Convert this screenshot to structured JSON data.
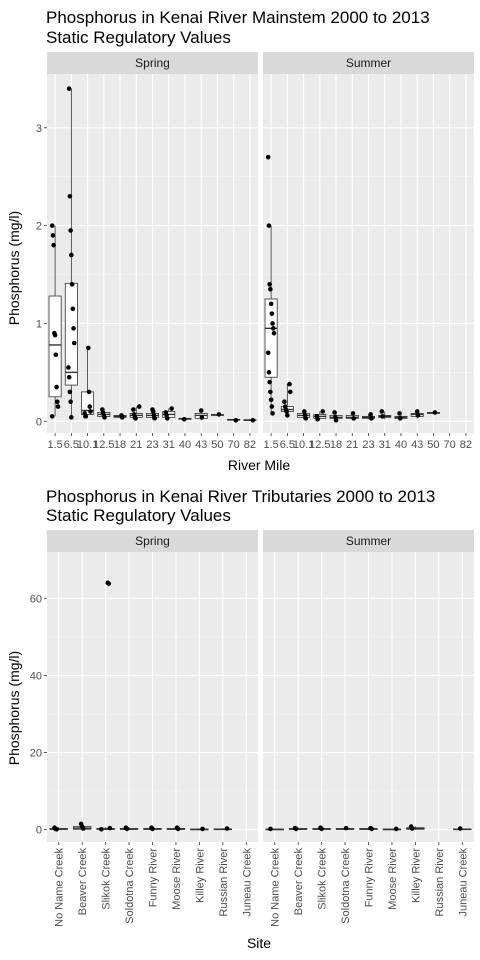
{
  "chart_data": [
    {
      "type": "boxplot",
      "title_line1": "Phosphorus in Kenai River Mainstem  2000 to 2013",
      "title_line2": "Static Regulatory Values",
      "xlabel": "River Mile",
      "ylabel": "Phosphorus (mg/l)",
      "ylim": [
        -0.12,
        3.55
      ],
      "y_ticks": [
        0,
        1,
        2,
        3
      ],
      "y_tick_labels": [
        "0",
        "1",
        "2",
        "3"
      ],
      "categories": [
        "1.5",
        "6.5",
        "10.1",
        "12.5",
        "18",
        "21",
        "23",
        "31",
        "40",
        "43",
        "50",
        "70",
        "82"
      ],
      "facets": [
        {
          "label": "Spring",
          "boxes": [
            {
              "cat": 0,
              "q1": 0.25,
              "med": 0.78,
              "q3": 1.28,
              "lo": 0.05,
              "hi": 2.0
            },
            {
              "cat": 1,
              "q1": 0.37,
              "med": 0.5,
              "q3": 1.41,
              "lo": 0.04,
              "hi": 3.4
            },
            {
              "cat": 2,
              "q1": 0.07,
              "med": 0.11,
              "q3": 0.3,
              "lo": 0.03,
              "hi": 0.75
            },
            {
              "cat": 3,
              "q1": 0.05,
              "med": 0.07,
              "q3": 0.09,
              "lo": 0.03,
              "hi": 0.12
            },
            {
              "cat": 4,
              "q1": 0.04,
              "med": 0.05,
              "q3": 0.06,
              "lo": 0.03,
              "hi": 0.07
            },
            {
              "cat": 5,
              "q1": 0.04,
              "med": 0.06,
              "q3": 0.08,
              "lo": 0.02,
              "hi": 0.15
            },
            {
              "cat": 6,
              "q1": 0.04,
              "med": 0.06,
              "q3": 0.08,
              "lo": 0.02,
              "hi": 0.12
            },
            {
              "cat": 7,
              "q1": 0.04,
              "med": 0.07,
              "q3": 0.1,
              "lo": 0.02,
              "hi": 0.13
            },
            {
              "cat": 8,
              "q1": 0.02,
              "med": 0.025,
              "q3": 0.03,
              "lo": 0.02,
              "hi": 0.03
            },
            {
              "cat": 9,
              "q1": 0.03,
              "med": 0.06,
              "q3": 0.08,
              "lo": 0.01,
              "hi": 0.11
            },
            {
              "cat": 10,
              "q1": 0.06,
              "med": 0.065,
              "q3": 0.07,
              "lo": 0.06,
              "hi": 0.07
            },
            {
              "cat": 11,
              "q1": 0.01,
              "med": 0.015,
              "q3": 0.02,
              "lo": 0.01,
              "hi": 0.02
            },
            {
              "cat": 12,
              "q1": 0.01,
              "med": 0.012,
              "q3": 0.015,
              "lo": 0.01,
              "hi": 0.015
            }
          ],
          "points": [
            [
              0,
              2.0
            ],
            [
              0,
              1.9
            ],
            [
              0,
              1.8
            ],
            [
              0,
              0.9
            ],
            [
              0,
              0.88
            ],
            [
              0,
              0.68
            ],
            [
              0,
              0.35
            ],
            [
              0,
              0.2
            ],
            [
              0,
              0.15
            ],
            [
              0,
              0.05
            ],
            [
              1,
              3.4
            ],
            [
              1,
              2.3
            ],
            [
              1,
              1.95
            ],
            [
              1,
              1.7
            ],
            [
              1,
              1.4
            ],
            [
              1,
              1.15
            ],
            [
              1,
              0.95
            ],
            [
              1,
              0.8
            ],
            [
              1,
              0.55
            ],
            [
              1,
              0.45
            ],
            [
              1,
              0.3
            ],
            [
              1,
              0.2
            ],
            [
              1,
              0.04
            ],
            [
              2,
              0.75
            ],
            [
              2,
              0.3
            ],
            [
              2,
              0.15
            ],
            [
              2,
              0.1
            ],
            [
              2,
              0.08
            ],
            [
              2,
              0.05
            ],
            [
              3,
              0.12
            ],
            [
              3,
              0.09
            ],
            [
              3,
              0.06
            ],
            [
              3,
              0.04
            ],
            [
              4,
              0.06
            ],
            [
              4,
              0.04
            ],
            [
              5,
              0.15
            ],
            [
              5,
              0.12
            ],
            [
              5,
              0.07
            ],
            [
              5,
              0.04
            ],
            [
              5,
              0.03
            ],
            [
              6,
              0.12
            ],
            [
              6,
              0.1
            ],
            [
              6,
              0.06
            ],
            [
              6,
              0.03
            ],
            [
              7,
              0.13
            ],
            [
              7,
              0.09
            ],
            [
              7,
              0.06
            ],
            [
              7,
              0.03
            ],
            [
              8,
              0.02
            ],
            [
              9,
              0.11
            ],
            [
              9,
              0.04
            ],
            [
              10,
              0.07
            ],
            [
              11,
              0.01
            ],
            [
              12,
              0.01
            ]
          ]
        },
        {
          "label": "Summer",
          "boxes": [
            {
              "cat": 0,
              "q1": 0.45,
              "med": 0.95,
              "q3": 1.25,
              "lo": 0.08,
              "hi": 2.0
            },
            {
              "cat": 1,
              "q1": 0.1,
              "med": 0.12,
              "q3": 0.15,
              "lo": 0.06,
              "hi": 0.38
            },
            {
              "cat": 2,
              "q1": 0.04,
              "med": 0.06,
              "q3": 0.08,
              "lo": 0.02,
              "hi": 0.1
            },
            {
              "cat": 3,
              "q1": 0.03,
              "med": 0.05,
              "q3": 0.07,
              "lo": 0.02,
              "hi": 0.1
            },
            {
              "cat": 4,
              "q1": 0.03,
              "med": 0.04,
              "q3": 0.06,
              "lo": 0.01,
              "hi": 0.09
            },
            {
              "cat": 5,
              "q1": 0.03,
              "med": 0.04,
              "q3": 0.06,
              "lo": 0.01,
              "hi": 0.08
            },
            {
              "cat": 6,
              "q1": 0.03,
              "med": 0.04,
              "q3": 0.05,
              "lo": 0.02,
              "hi": 0.07
            },
            {
              "cat": 7,
              "q1": 0.04,
              "med": 0.05,
              "q3": 0.06,
              "lo": 0.02,
              "hi": 0.1
            },
            {
              "cat": 8,
              "q1": 0.03,
              "med": 0.04,
              "q3": 0.05,
              "lo": 0.02,
              "hi": 0.08
            },
            {
              "cat": 9,
              "q1": 0.05,
              "med": 0.07,
              "q3": 0.08,
              "lo": 0.03,
              "hi": 0.1
            },
            {
              "cat": 10,
              "q1": 0.08,
              "med": 0.085,
              "q3": 0.09,
              "lo": 0.08,
              "hi": 0.09
            }
          ],
          "points": [
            [
              0,
              2.7
            ],
            [
              0,
              2.0
            ],
            [
              0,
              1.4
            ],
            [
              0,
              1.35
            ],
            [
              0,
              1.2
            ],
            [
              0,
              1.1
            ],
            [
              0,
              1.0
            ],
            [
              0,
              0.95
            ],
            [
              0,
              0.9
            ],
            [
              0,
              0.7
            ],
            [
              0,
              0.5
            ],
            [
              0,
              0.4
            ],
            [
              0,
              0.3
            ],
            [
              0,
              0.22
            ],
            [
              0,
              0.15
            ],
            [
              0,
              0.08
            ],
            [
              1,
              0.38
            ],
            [
              1,
              0.3
            ],
            [
              1,
              0.2
            ],
            [
              1,
              0.15
            ],
            [
              1,
              0.12
            ],
            [
              1,
              0.1
            ],
            [
              1,
              0.06
            ],
            [
              2,
              0.1
            ],
            [
              2,
              0.06
            ],
            [
              2,
              0.03
            ],
            [
              3,
              0.1
            ],
            [
              3,
              0.05
            ],
            [
              3,
              0.02
            ],
            [
              4,
              0.09
            ],
            [
              4,
              0.04
            ],
            [
              4,
              0.01
            ],
            [
              5,
              0.08
            ],
            [
              5,
              0.03
            ],
            [
              6,
              0.07
            ],
            [
              6,
              0.03
            ],
            [
              7,
              0.1
            ],
            [
              7,
              0.05
            ],
            [
              8,
              0.08
            ],
            [
              8,
              0.03
            ],
            [
              9,
              0.1
            ],
            [
              9,
              0.06
            ],
            [
              10,
              0.09
            ]
          ]
        }
      ]
    },
    {
      "type": "boxplot",
      "title_line1": "Phosphorus in Kenai River Tributaries  2000 to 2013",
      "title_line2": "Static Regulatory Values",
      "xlabel": "Site",
      "ylabel": "Phosphorus (mg/l)",
      "ylim": [
        -3.2,
        72
      ],
      "y_ticks": [
        0,
        20,
        40,
        60
      ],
      "y_tick_labels": [
        "0",
        "20",
        "40",
        "60"
      ],
      "categories": [
        "No Name Creek",
        "Beaver Creek",
        "Slikok Creek",
        "Soldotna Creek",
        "Funny River",
        "Moose River",
        "Killey River",
        "Russian River",
        "Juneau Creek"
      ],
      "facets": [
        {
          "label": "Spring",
          "boxes": [
            {
              "cat": 0,
              "q1": 0.05,
              "med": 0.15,
              "q3": 0.3,
              "lo": 0.0,
              "hi": 0.6
            },
            {
              "cat": 1,
              "q1": 0.1,
              "med": 0.4,
              "q3": 0.8,
              "lo": 0.0,
              "hi": 1.6
            },
            {
              "cat": 2,
              "q1": 0.05,
              "med": 0.15,
              "q3": 0.3,
              "lo": 0.0,
              "hi": 0.6
            },
            {
              "cat": 3,
              "q1": 0.05,
              "med": 0.15,
              "q3": 0.3,
              "lo": 0.0,
              "hi": 0.6
            },
            {
              "cat": 4,
              "q1": 0.05,
              "med": 0.15,
              "q3": 0.3,
              "lo": 0.0,
              "hi": 0.6
            },
            {
              "cat": 5,
              "q1": 0.05,
              "med": 0.15,
              "q3": 0.3,
              "lo": 0.0,
              "hi": 0.6
            },
            {
              "cat": 6,
              "q1": 0.02,
              "med": 0.08,
              "q3": 0.15,
              "lo": 0.0,
              "hi": 0.3
            },
            {
              "cat": 7,
              "q1": 0.02,
              "med": 0.1,
              "q3": 0.2,
              "lo": 0.0,
              "hi": 0.4
            }
          ],
          "points": [
            [
              0,
              0.5
            ],
            [
              0,
              0.2
            ],
            [
              0,
              0.1
            ],
            [
              1,
              1.5
            ],
            [
              1,
              0.8
            ],
            [
              1,
              0.3
            ],
            [
              2,
              64.0
            ],
            [
              2,
              63.8
            ],
            [
              2,
              0.4
            ],
            [
              2,
              0.1
            ],
            [
              3,
              0.5
            ],
            [
              3,
              0.2
            ],
            [
              4,
              0.5
            ],
            [
              4,
              0.2
            ],
            [
              5,
              0.5
            ],
            [
              5,
              0.2
            ],
            [
              6,
              0.2
            ],
            [
              7,
              0.3
            ]
          ]
        },
        {
          "label": "Summer",
          "boxes": [
            {
              "cat": 0,
              "q1": 0.02,
              "med": 0.08,
              "q3": 0.15,
              "lo": 0.0,
              "hi": 0.3
            },
            {
              "cat": 1,
              "q1": 0.05,
              "med": 0.15,
              "q3": 0.3,
              "lo": 0.0,
              "hi": 0.5
            },
            {
              "cat": 2,
              "q1": 0.05,
              "med": 0.15,
              "q3": 0.3,
              "lo": 0.0,
              "hi": 0.6
            },
            {
              "cat": 3,
              "q1": 0.05,
              "med": 0.15,
              "q3": 0.3,
              "lo": 0.0,
              "hi": 0.5
            },
            {
              "cat": 4,
              "q1": 0.05,
              "med": 0.15,
              "q3": 0.3,
              "lo": 0.0,
              "hi": 0.5
            },
            {
              "cat": 5,
              "q1": 0.02,
              "med": 0.08,
              "q3": 0.15,
              "lo": 0.0,
              "hi": 0.3
            },
            {
              "cat": 6,
              "q1": 0.1,
              "med": 0.3,
              "q3": 0.5,
              "lo": 0.0,
              "hi": 0.9
            },
            {
              "cat": 8,
              "q1": 0.05,
              "med": 0.1,
              "q3": 0.2,
              "lo": 0.0,
              "hi": 0.3
            }
          ],
          "points": [
            [
              0,
              0.2
            ],
            [
              1,
              0.4
            ],
            [
              1,
              0.2
            ],
            [
              2,
              0.5
            ],
            [
              2,
              0.2
            ],
            [
              3,
              0.4
            ],
            [
              4,
              0.4
            ],
            [
              4,
              0.2
            ],
            [
              5,
              0.2
            ],
            [
              6,
              0.8
            ],
            [
              6,
              0.3
            ],
            [
              8,
              0.3
            ]
          ]
        }
      ]
    }
  ]
}
